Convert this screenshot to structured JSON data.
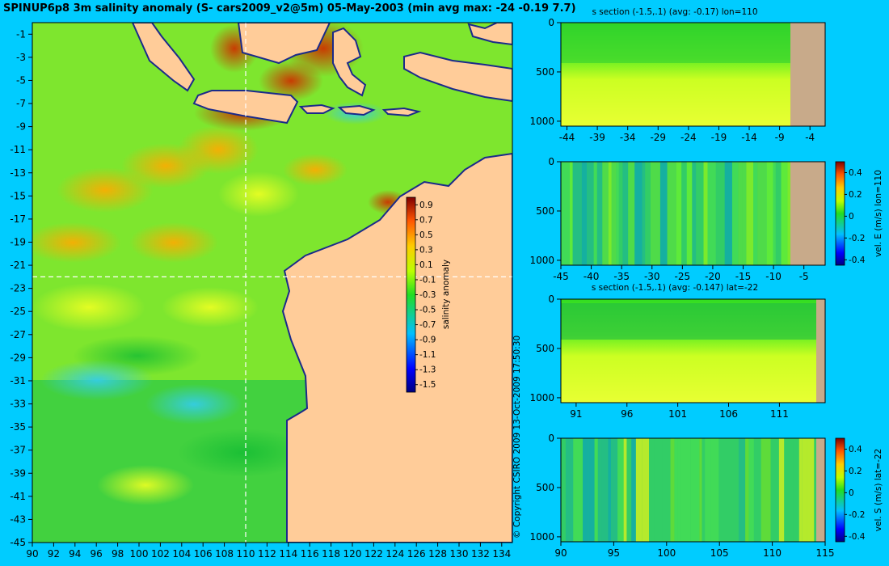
{
  "colors": {
    "background": "#00ccff",
    "land": "#ffcc99",
    "section_land": "#c8aa8a",
    "axis": "#000000"
  },
  "page": {
    "title": "SPINUP6p8 3m salinity anomaly (S- cars2009_v2@5m) 05-May-2003 (min avg max: -24 -0.19 7.7)",
    "copyright": "© Copyright CSIRO 2009  13-Oct-2009 17:50:30"
  },
  "chart_data": [
    {
      "id": "map",
      "type": "heatmap",
      "title": "SPINUP6p8 3m salinity anomaly (S- cars2009_v2@5m) 05-May-2003 (min avg max: -24 -0.19 7.7)",
      "x_ticks": [
        "90",
        "92",
        "94",
        "96",
        "98",
        "100",
        "102",
        "104",
        "106",
        "108",
        "110",
        "112",
        "114",
        "116",
        "118",
        "120",
        "122",
        "124",
        "126",
        "128",
        "130",
        "132",
        "134"
      ],
      "xlim": [
        90,
        135
      ],
      "y_ticks": [
        "-1",
        "-3",
        "-5",
        "-7",
        "-9",
        "-11",
        "-13",
        "-15",
        "-17",
        "-19",
        "-21",
        "-23",
        "-25",
        "-27",
        "-29",
        "-31",
        "-33",
        "-35",
        "-37",
        "-39",
        "-41",
        "-43",
        "-45"
      ],
      "ylim": [
        -45,
        0
      ],
      "crosshair": {
        "lon": 110,
        "lat": -22
      },
      "colorbar": {
        "label": "salinity anomaly",
        "ticks": [
          "0.9",
          "0.7",
          "0.5",
          "0.3",
          "0.1",
          "-0.1",
          "-0.3",
          "-0.5",
          "-0.7",
          "-0.9",
          "-1.1",
          "-1.3",
          "-1.5"
        ],
        "range": [
          -1.6,
          1.0
        ]
      }
    },
    {
      "id": "s-section-lon",
      "type": "heatmap",
      "title": "s section (-1.5,.1) (avg: -0.17) lon=110",
      "x_ticks": [
        "-44",
        "-39",
        "-34",
        "-29",
        "-24",
        "-19",
        "-14",
        "-9",
        "-4"
      ],
      "xlim": [
        -45,
        -1.5
      ],
      "y_ticks": [
        "0",
        "500",
        "1000"
      ],
      "ylim": [
        1050,
        0
      ],
      "land_from": -8.5
    },
    {
      "id": "vel-e-lon",
      "type": "heatmap",
      "title": "",
      "x_ticks": [
        "-45",
        "-40",
        "-35",
        "-30",
        "-25",
        "-20",
        "-15",
        "-10",
        "-5"
      ],
      "xlim": [
        -45,
        -1.5
      ],
      "y_ticks": [
        "0",
        "500",
        "1000"
      ],
      "ylim": [
        1050,
        0
      ],
      "land_from": -8.5,
      "colorbar": {
        "label": "vel. E (m/s) lon=110",
        "ticks": [
          "0.4",
          "0.2",
          "0",
          "-0.2",
          "-0.4"
        ],
        "range": [
          -0.45,
          0.5
        ]
      }
    },
    {
      "id": "s-section-lat",
      "type": "heatmap",
      "title": "s section (-1.5,.1) (avg: -0.147) lat=-22",
      "x_ticks": [
        "91",
        "96",
        "101",
        "106",
        "111"
      ],
      "xlim": [
        89.5,
        115.5
      ],
      "y_ticks": [
        "0",
        "500",
        "1000"
      ],
      "ylim": [
        1050,
        0
      ],
      "land_from": 113.8
    },
    {
      "id": "vel-s-lat",
      "type": "heatmap",
      "title": "",
      "x_ticks": [
        "90",
        "95",
        "100",
        "105",
        "110",
        "115"
      ],
      "xlim": [
        90,
        115
      ],
      "y_ticks": [
        "0",
        "500",
        "1000"
      ],
      "ylim": [
        1050,
        0
      ],
      "land_from": 113.8,
      "colorbar": {
        "label": "vel. S (m/s) lat=-22",
        "ticks": [
          "0.4",
          "0.2",
          "0",
          "-0.2",
          "-0.4"
        ],
        "range": [
          -0.45,
          0.5
        ]
      }
    }
  ]
}
